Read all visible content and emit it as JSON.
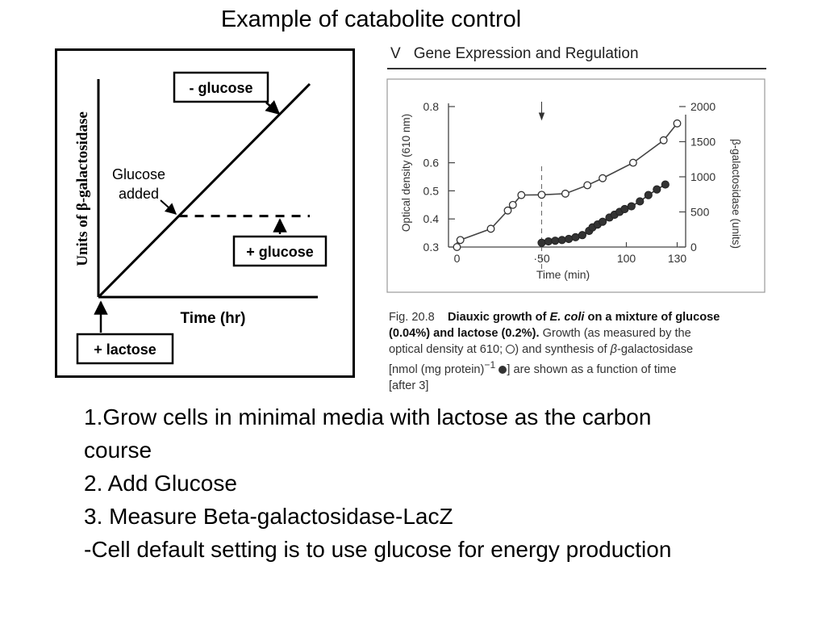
{
  "slide": {
    "title": "Example of catabolite control",
    "steps": [
      "1.Grow cells in minimal media with lactose as the carbon course",
      "2. Add Glucose",
      "3. Measure Beta-galactosidase-LacZ",
      "-Cell default setting is to use glucose for energy production"
    ]
  },
  "book": {
    "chapter": "V",
    "section": "Gene Expression and Regulation"
  },
  "caption": {
    "fig_label": "Fig. 20.8",
    "title_part1": "Diauxic growth of ",
    "organism": "E. coli",
    "title_part2": " on a mixture of glucose",
    "title_part3": "(0.04%) and lactose (0.2%).",
    "body1": " Growth (as measured by the",
    "body2a": "optical density at 610; ",
    "body2b": ") and synthesis of ",
    "beta": "β",
    "body2c": "-galactosidase",
    "body3a": "[nmol (mg protein)",
    "body3sup": "−1",
    "body3b": "] are shown as a function of time",
    "body4": "[after 3]"
  },
  "chart_data": [
    {
      "type": "line",
      "xlabel": "Time (hr)",
      "ylabel": "Units of β-galactosidase",
      "grid": false,
      "series": [
        {
          "values": [
            [
              0,
              0
            ],
            [
              1,
              1
            ]
          ]
        },
        {
          "values": [
            [
              0.38,
              0.38
            ],
            [
              1,
              0.38
            ]
          ]
        }
      ],
      "annotations": [
        {
          "text": "- glucose"
        },
        {
          "text": "Glucose added"
        },
        {
          "text": "+ glucose"
        },
        {
          "text": "+ lactose"
        }
      ],
      "colors": {
        "line": "#000000"
      }
    },
    {
      "type": "line",
      "xlabel": "Time (min)",
      "ylabel": "Optical density (610 nm)",
      "y2label": "β-galactosidase (units)",
      "xlim": [
        -5,
        135
      ],
      "ylim": [
        0.3,
        0.8
      ],
      "y2lim": [
        0,
        2000
      ],
      "xticks": [
        0,
        50,
        100,
        130
      ],
      "xtick_labels": [
        "0",
        "·50",
        "100",
        "130"
      ],
      "yticks": [
        0.3,
        0.4,
        0.5,
        0.6,
        0.8
      ],
      "ytick_labels": [
        "0.3",
        "0.4",
        "0.5",
        "0.6",
        "0.8"
      ],
      "y2ticks": [
        0,
        500,
        1000,
        1500,
        2000
      ],
      "grid": false,
      "arrow_at_x": 50,
      "series": [
        {
          "axis": "left",
          "marker": "open-circle",
          "x": [
            0,
            2,
            20,
            30,
            33,
            38,
            50,
            64,
            77,
            86,
            104,
            122,
            130
          ],
          "y": [
            0.3,
            0.325,
            0.365,
            0.43,
            0.45,
            0.485,
            0.486,
            0.49,
            0.52,
            0.545,
            0.6,
            0.68,
            0.74
          ]
        },
        {
          "axis": "right",
          "marker": "filled-circle",
          "x": [
            50,
            54,
            58,
            62,
            66,
            70,
            74,
            78,
            80,
            83,
            86,
            90,
            93,
            96,
            99,
            103,
            108,
            113,
            118,
            123
          ],
          "y": [
            60,
            80,
            90,
            100,
            115,
            140,
            170,
            230,
            280,
            320,
            360,
            420,
            460,
            500,
            540,
            580,
            650,
            740,
            820,
            890
          ]
        }
      ]
    }
  ]
}
